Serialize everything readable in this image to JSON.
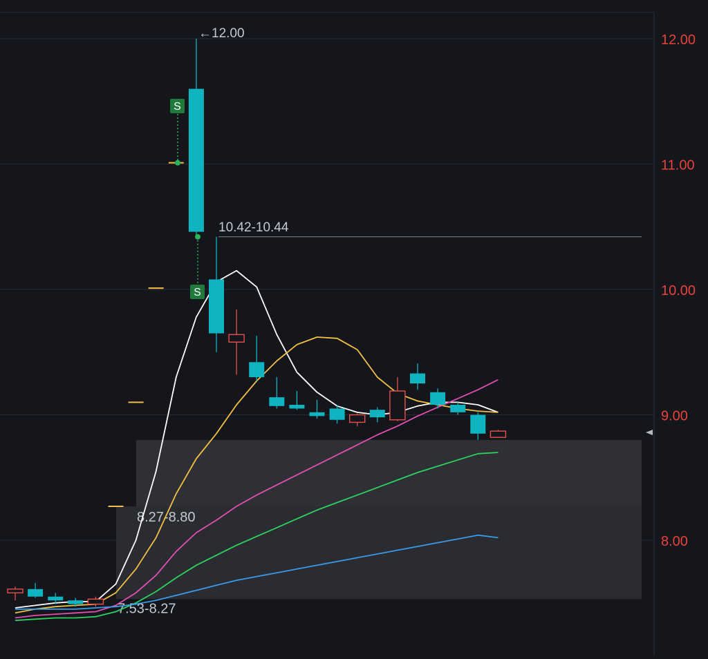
{
  "chart_data": {
    "type": "candlestick",
    "y_axis": {
      "ticks": [
        {
          "value": 12,
          "label": "12.00"
        },
        {
          "value": 11,
          "label": "11.00"
        },
        {
          "value": 10,
          "label": "10.00"
        },
        {
          "value": 9,
          "label": "9.00"
        },
        {
          "value": 8,
          "label": "8.00"
        }
      ],
      "range": [
        7.32,
        12.2
      ]
    },
    "candles": [
      {
        "open": 7.58,
        "high": 7.63,
        "low": 7.52,
        "close": 7.61
      },
      {
        "open": 7.61,
        "high": 7.66,
        "low": 7.54,
        "close": 7.55
      },
      {
        "open": 7.55,
        "high": 7.58,
        "low": 7.49,
        "close": 7.52
      },
      {
        "open": 7.52,
        "high": 7.54,
        "low": 7.47,
        "close": 7.49
      },
      {
        "open": 7.49,
        "high": 7.55,
        "low": 7.47,
        "close": 7.53
      },
      {
        "open": 8.27,
        "high": 8.27,
        "low": 8.27,
        "close": 8.27
      },
      {
        "open": 9.1,
        "high": 9.1,
        "low": 9.1,
        "close": 9.1
      },
      {
        "open": 10.01,
        "high": 10.01,
        "low": 10.01,
        "close": 10.01
      },
      {
        "open": 11.01,
        "high": 11.01,
        "low": 11.01,
        "close": 11.01
      },
      {
        "open": 11.6,
        "high": 12.0,
        "low": 10.42,
        "close": 10.46
      },
      {
        "open": 10.08,
        "high": 10.42,
        "low": 9.5,
        "close": 9.65
      },
      {
        "open": 9.58,
        "high": 9.84,
        "low": 9.32,
        "close": 9.64
      },
      {
        "open": 9.42,
        "high": 9.63,
        "low": 9.27,
        "close": 9.3
      },
      {
        "open": 9.14,
        "high": 9.3,
        "low": 9.05,
        "close": 9.07
      },
      {
        "open": 9.08,
        "high": 9.19,
        "low": 9.04,
        "close": 9.05
      },
      {
        "open": 9.02,
        "high": 9.12,
        "low": 8.97,
        "close": 8.99
      },
      {
        "open": 9.05,
        "high": 9.08,
        "low": 8.93,
        "close": 8.96
      },
      {
        "open": 8.94,
        "high": 9.01,
        "low": 8.91,
        "close": 9.0
      },
      {
        "open": 9.04,
        "high": 9.06,
        "low": 8.94,
        "close": 8.98
      },
      {
        "open": 8.96,
        "high": 9.3,
        "low": 8.95,
        "close": 9.19
      },
      {
        "open": 9.33,
        "high": 9.41,
        "low": 9.2,
        "close": 9.25
      },
      {
        "open": 9.18,
        "high": 9.21,
        "low": 9.05,
        "close": 9.08
      },
      {
        "open": 9.08,
        "high": 9.1,
        "low": 9.0,
        "close": 9.02
      },
      {
        "open": 9.0,
        "high": 9.02,
        "low": 8.8,
        "close": 8.85
      },
      {
        "open": 8.82,
        "high": 8.88,
        "low": 8.82,
        "close": 8.87
      }
    ],
    "series": [
      {
        "color": "#ffffff",
        "values": [
          7.46,
          7.48,
          7.5,
          7.51,
          7.51,
          7.65,
          8.0,
          8.55,
          9.3,
          9.78,
          10.06,
          10.15,
          10.02,
          9.64,
          9.34,
          9.18,
          9.07,
          9.02,
          9.0,
          9.02,
          9.07,
          9.1,
          9.1,
          9.08,
          9.02
        ]
      },
      {
        "color": "#f2c044",
        "values": [
          7.42,
          7.45,
          7.47,
          7.48,
          7.49,
          7.58,
          7.77,
          8.02,
          8.37,
          8.65,
          8.85,
          9.08,
          9.27,
          9.43,
          9.56,
          9.62,
          9.61,
          9.52,
          9.3,
          9.17,
          9.11,
          9.08,
          9.05,
          9.03,
          9.02
        ]
      },
      {
        "color": "#e14fb0",
        "values": [
          7.38,
          7.4,
          7.41,
          7.42,
          7.43,
          7.48,
          7.58,
          7.72,
          7.91,
          8.06,
          8.16,
          8.27,
          8.36,
          8.44,
          8.52,
          8.6,
          8.68,
          8.76,
          8.84,
          8.91,
          8.99,
          9.06,
          9.13,
          9.2,
          9.28
        ]
      },
      {
        "color": "#2fd25f",
        "values": [
          7.36,
          7.37,
          7.38,
          7.38,
          7.39,
          7.43,
          7.5,
          7.59,
          7.7,
          7.8,
          7.88,
          7.96,
          8.03,
          8.1,
          8.17,
          8.24,
          8.3,
          8.36,
          8.42,
          8.48,
          8.54,
          8.59,
          8.64,
          8.69,
          8.7
        ]
      },
      {
        "color": "#3a9be8",
        "values": [
          7.45,
          7.45,
          7.45,
          7.45,
          7.46,
          7.47,
          7.49,
          7.52,
          7.56,
          7.6,
          7.64,
          7.68,
          7.71,
          7.74,
          7.77,
          7.8,
          7.83,
          7.86,
          7.89,
          7.92,
          7.95,
          7.98,
          8.01,
          8.04,
          8.02
        ]
      }
    ],
    "zones": [
      {
        "low": 8.27,
        "high": 8.8,
        "label": "8.27-8.80"
      },
      {
        "low": 7.53,
        "high": 8.27,
        "label": "7.53-8.27"
      }
    ],
    "annotations": [
      {
        "label": "←12.00",
        "value": 12.0
      },
      {
        "label": "10.42-10.44",
        "value": 10.43
      }
    ],
    "markers": [
      {
        "label": "S",
        "price": 11.01
      },
      {
        "label": "S",
        "price": 10.42
      }
    ],
    "colors": {
      "up": "#e8504a",
      "down": "#0fb4c0",
      "axis_text": "#e8433a",
      "background": "#14161c",
      "marker": "#1f7a3c"
    }
  }
}
